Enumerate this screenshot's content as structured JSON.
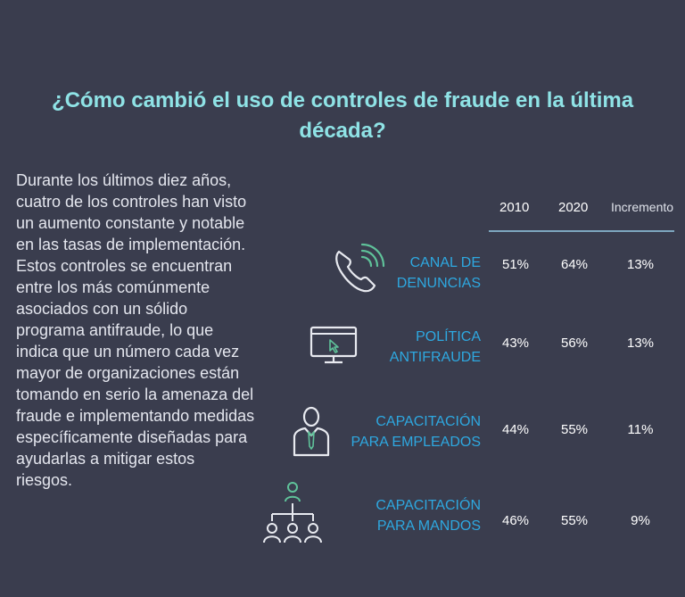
{
  "title": "¿Cómo cambió el uso de controles de fraude en la última década?",
  "body_text": "Durante los últimos diez años, cuatro de los controles han visto un aumento constante y notable en las tasas de implementación. Estos controles se encuentran entre los más comúnmente asociados con un sólido programa antifraude, lo que indica que un número cada vez mayor de organizaciones están tomando en serio la amenaza del fraude e implementando medidas específicamente diseñadas para ayudarlas a mitigar estos riesgos.",
  "columns": [
    "2010",
    "2020",
    "Incremento"
  ],
  "rows": [
    {
      "icon": "phone-icon",
      "label_line1": "CANAL DE",
      "label_line2": "DENUNCIAS",
      "v2010": "51%",
      "v2020": "64%",
      "inc": "13%"
    },
    {
      "icon": "monitor-icon",
      "label_line1": "POLÍTICA",
      "label_line2": "ANTIFRAUDE",
      "v2010": "43%",
      "v2020": "56%",
      "inc": "13%"
    },
    {
      "icon": "employee-icon",
      "label_line1": "CAPACITACIÓN",
      "label_line2": "PARA EMPLEADOS",
      "v2010": "44%",
      "v2020": "55%",
      "inc": "11%"
    },
    {
      "icon": "org-chart-icon",
      "label_line1": "CAPACITACIÓN",
      "label_line2": "PARA MANDOS",
      "v2010": "46%",
      "v2020": "55%",
      "inc": "9%"
    }
  ],
  "colors": {
    "background": "#3a3d4e",
    "title": "#8fe3e6",
    "label": "#2ea8e0",
    "accent": "#5fc29a"
  }
}
